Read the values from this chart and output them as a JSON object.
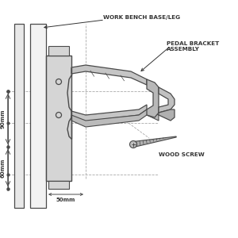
{
  "bg_color": "#ffffff",
  "line_color": "#4a4a4a",
  "dash_color": "#aaaaaa",
  "text_color": "#333333",
  "label_workbench": "WORK BENCH BASE/LEG",
  "label_bracket": "PEDAL BRACKET\nASSEMBLY",
  "label_screw": "WOOD SCREW",
  "dim_90mm": "90mm",
  "dim_60mm": "60mm",
  "dim_50mm": "50mm",
  "figsize": [
    3.0,
    3.0
  ],
  "dpi": 100
}
